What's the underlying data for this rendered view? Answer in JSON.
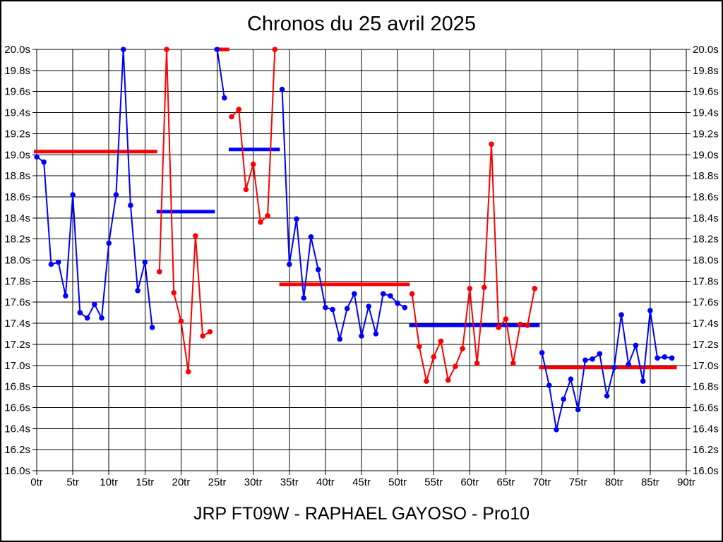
{
  "title": "Chronos du 25 avril 2025",
  "footer": "JRP FT09W - RAPHAEL GAYOSO - Pro10",
  "colors": {
    "blue_series": "#0000ff",
    "red_series": "#ff0000",
    "grid": "#000000",
    "background": "#ffffff"
  },
  "chart_data": {
    "type": "line",
    "title": "Chronos du 25 avril 2025",
    "subtitle": "JRP FT09W - RAPHAEL GAYOSO - Pro10",
    "x_unit": "tr",
    "y_unit": "s",
    "xlim": [
      0,
      90
    ],
    "ylim": [
      16.0,
      20.0
    ],
    "x_tick_step": 5,
    "y_tick_step": 0.2,
    "grid": true,
    "x_tick_labels": [
      "0tr",
      "5tr",
      "10tr",
      "15tr",
      "20tr",
      "25tr",
      "30tr",
      "35tr",
      "40tr",
      "45tr",
      "50tr",
      "55tr",
      "60tr",
      "65tr",
      "70tr",
      "75tr",
      "80tr",
      "85tr",
      "90tr"
    ],
    "y_tick_labels": [
      "20.0s",
      "19.8s",
      "19.6s",
      "19.4s",
      "19.2s",
      "19.0s",
      "18.8s",
      "18.6s",
      "18.4s",
      "18.2s",
      "18.0s",
      "17.8s",
      "17.6s",
      "17.4s",
      "17.2s",
      "17.0s",
      "16.8s",
      "16.6s",
      "16.4s",
      "16.2s",
      "16.0s"
    ],
    "note": "lap times in seconds per lap (tr = tours); values of 20.0 are clipped at chart top; each segment is a run with a thick average line in the opposite colour",
    "segments": [
      {
        "name": "run-1",
        "color": "blue",
        "start_lap": 0,
        "times": [
          18.98,
          18.93,
          17.96,
          17.98,
          17.66,
          18.62,
          17.5,
          17.45,
          17.58,
          17.45,
          18.16,
          18.62,
          20.0,
          18.52,
          17.71,
          17.98,
          17.36
        ],
        "avg": {
          "color": "red",
          "value": 19.03
        }
      },
      {
        "name": "run-2",
        "color": "red",
        "start_lap": 17,
        "times": [
          17.89,
          20.0,
          17.69,
          17.42,
          16.94,
          18.23,
          17.28,
          17.32
        ],
        "avg": {
          "color": "blue",
          "value": 18.46
        }
      },
      {
        "name": "run-3",
        "color": "blue",
        "start_lap": 25,
        "times": [
          20.0,
          19.54
        ],
        "avg": {
          "color": "red",
          "value": 20.0
        }
      },
      {
        "name": "run-4",
        "color": "red",
        "start_lap": 27,
        "times": [
          19.36,
          19.43,
          18.67,
          18.91,
          18.36,
          18.42,
          20.0
        ],
        "avg": {
          "color": "blue",
          "value": 19.05
        }
      },
      {
        "name": "run-5",
        "color": "blue",
        "start_lap": 34,
        "times": [
          19.62,
          17.96,
          18.39,
          17.64,
          18.22,
          17.91,
          17.55,
          17.53,
          17.25,
          17.54,
          17.68,
          17.28,
          17.56,
          17.3,
          17.68,
          17.66,
          17.59,
          17.55
        ],
        "avg": {
          "color": "red",
          "value": 17.77
        }
      },
      {
        "name": "run-6",
        "color": "red",
        "start_lap": 52,
        "times": [
          17.68,
          17.18,
          16.85,
          17.08,
          17.23,
          16.86,
          16.99,
          17.16,
          17.73,
          17.02,
          17.74,
          19.1,
          17.36,
          17.44,
          17.02,
          17.39,
          17.38,
          17.73
        ],
        "avg": {
          "color": "blue",
          "value": 17.38
        }
      },
      {
        "name": "run-7",
        "color": "blue",
        "start_lap": 70,
        "times": [
          17.12,
          16.81,
          16.39,
          16.68,
          16.87,
          16.58,
          17.05,
          17.06,
          17.11,
          16.71,
          16.98,
          17.48,
          17.01,
          17.19,
          16.85,
          17.52,
          17.07,
          17.08,
          17.07
        ],
        "avg": {
          "color": "red",
          "value": 16.98
        }
      }
    ]
  }
}
